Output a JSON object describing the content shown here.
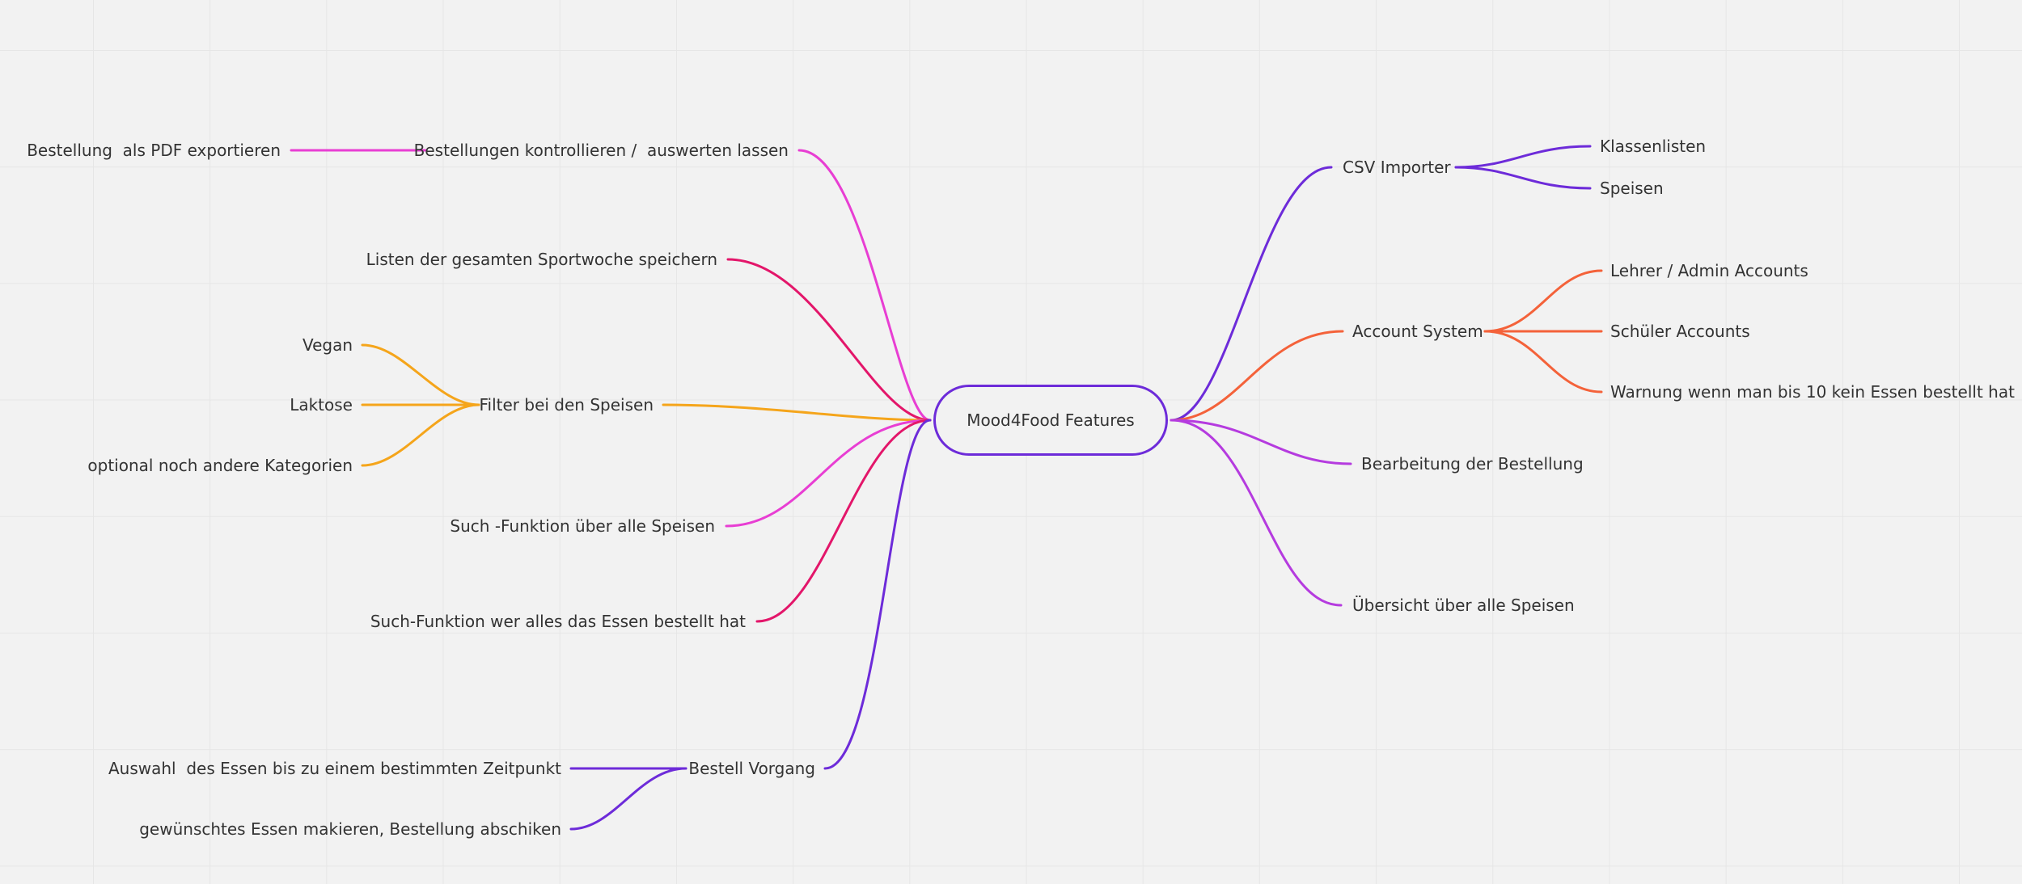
{
  "mindmap": {
    "root": "Mood4Food Features",
    "colors": {
      "purple": "#6d2bd9",
      "violet": "#b53bdf",
      "pink": "#e83ed3",
      "crimson": "#e3166a",
      "orange": "#f5a51b",
      "coral": "#f4623a"
    },
    "left": [
      {
        "label": "Bestellungen kontrollieren /  auswerten lassen",
        "children": [
          "Bestellung  als PDF exportieren"
        ]
      },
      {
        "label": "Listen der gesamten Sportwoche speichern",
        "children": []
      },
      {
        "label": "Filter bei den Speisen",
        "children": [
          "Vegan",
          "Laktose",
          "optional noch andere Kategorien"
        ]
      },
      {
        "label": "Such -Funktion über alle Speisen",
        "children": []
      },
      {
        "label": "Such-Funktion wer alles das Essen bestellt hat",
        "children": []
      },
      {
        "label": "Bestell Vorgang",
        "children": [
          "Auswahl  des Essen bis zu einem bestimmten Zeitpunkt",
          "gewünschtes Essen makieren, Bestellung abschiken"
        ]
      }
    ],
    "right": [
      {
        "label": "CSV Importer",
        "children": [
          "Klassenlisten",
          "Speisen"
        ]
      },
      {
        "label": "Account System",
        "children": [
          "Lehrer / Admin Accounts",
          "Schüler Accounts",
          "Warnung wenn man bis 10 kein Essen bestellt hat"
        ]
      },
      {
        "label": "Bearbeitung der Bestellung",
        "children": []
      },
      {
        "label": "Übersicht über alle Speisen",
        "children": []
      }
    ]
  }
}
